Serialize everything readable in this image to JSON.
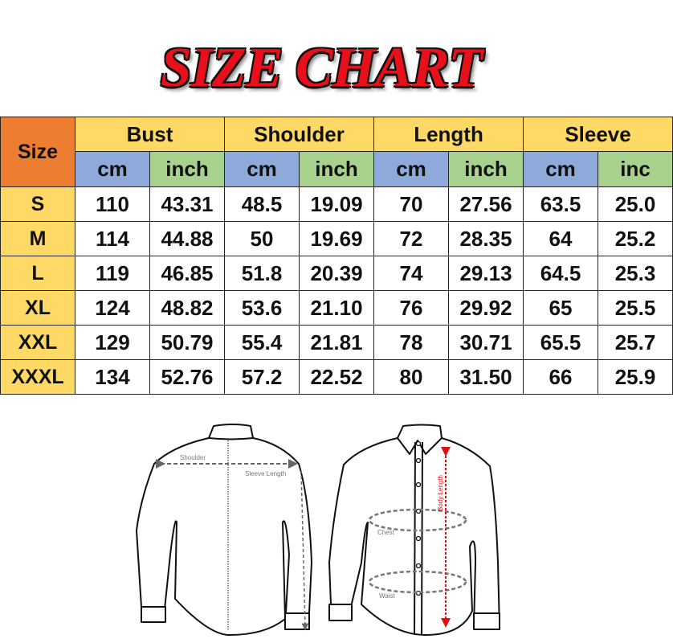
{
  "title": "SIZE CHART",
  "table": {
    "size_header": "Size",
    "groups": [
      "Bust",
      "Shoulder",
      "Length",
      "Sleeve"
    ],
    "units": [
      "cm",
      "inch",
      "cm",
      "inch",
      "cm",
      "inch",
      "cm",
      "inc"
    ],
    "rows": [
      {
        "size": "S",
        "values": [
          "110",
          "43.31",
          "48.5",
          "19.09",
          "70",
          "27.56",
          "63.5",
          "25.0"
        ]
      },
      {
        "size": "M",
        "values": [
          "114",
          "44.88",
          "50",
          "19.69",
          "72",
          "28.35",
          "64",
          "25.2"
        ]
      },
      {
        "size": "L",
        "values": [
          "119",
          "46.85",
          "51.8",
          "20.39",
          "74",
          "29.13",
          "64.5",
          "25.3"
        ]
      },
      {
        "size": "XL",
        "values": [
          "124",
          "48.82",
          "53.6",
          "21.10",
          "76",
          "29.92",
          "65",
          "25.5"
        ]
      },
      {
        "size": "XXL",
        "values": [
          "129",
          "50.79",
          "55.4",
          "21.81",
          "78",
          "30.71",
          "65.5",
          "25.7"
        ]
      },
      {
        "size": "XXXL",
        "values": [
          "134",
          "52.76",
          "57.2",
          "22.52",
          "80",
          "31.50",
          "66",
          "25.9"
        ]
      }
    ]
  },
  "diagram": {
    "shoulder_label": "Shoulder",
    "sleeve_label": "Sleeve Length",
    "chest_label": "Chest",
    "waist_label": "Waist",
    "body_length_label": "Body Length"
  },
  "colors": {
    "title_red": "#e8101a",
    "header_yellow": "#ffd966",
    "size_orange": "#ed7d31",
    "cm_blue": "#8eaadb",
    "inch_green": "#a9d18e",
    "body_length_red": "#e01010"
  }
}
